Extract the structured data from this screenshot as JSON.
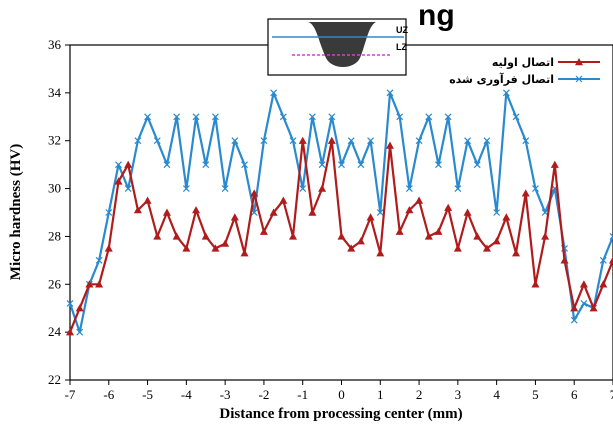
{
  "chart_data": {
    "type": "line",
    "title": "",
    "xlabel": "Distance from processing center (mm)",
    "ylabel": "Micro hardness (HV)",
    "xlim": [
      -7,
      7
    ],
    "ylim": [
      22,
      36
    ],
    "xticks": [
      -7,
      -6,
      -5,
      -4,
      -3,
      -2,
      -1,
      0,
      1,
      2,
      3,
      4,
      5,
      6,
      7
    ],
    "yticks": [
      22,
      24,
      26,
      28,
      30,
      32,
      34,
      36
    ],
    "grid": false,
    "legend_position": "top-right",
    "inset": {
      "labels": [
        "UZ",
        "LZ"
      ]
    },
    "series": [
      {
        "name": "اتصال اولیه",
        "color": "#b01c1c",
        "marker": "triangle",
        "x": [
          -7.0,
          -6.75,
          -6.5,
          -6.25,
          -6.0,
          -5.75,
          -5.5,
          -5.25,
          -5.0,
          -4.75,
          -4.5,
          -4.25,
          -4.0,
          -3.75,
          -3.5,
          -3.25,
          -3.0,
          -2.75,
          -2.5,
          -2.25,
          -2.0,
          -1.75,
          -1.5,
          -1.25,
          -1.0,
          -0.75,
          -0.5,
          -0.25,
          0.0,
          0.25,
          0.5,
          0.75,
          1.0,
          1.25,
          1.5,
          1.75,
          2.0,
          2.25,
          2.5,
          2.75,
          3.0,
          3.25,
          3.5,
          3.75,
          4.0,
          4.25,
          4.5,
          4.75,
          5.0,
          5.25,
          5.5,
          5.75,
          6.0,
          6.25,
          6.5,
          6.75,
          7.0
        ],
        "y": [
          24.0,
          25.0,
          26.0,
          26.0,
          27.5,
          30.3,
          31.0,
          29.1,
          29.5,
          28.0,
          29.0,
          28.0,
          27.5,
          29.1,
          28.0,
          27.5,
          27.7,
          28.8,
          27.3,
          29.8,
          28.2,
          29.0,
          29.5,
          28.0,
          32.0,
          29.0,
          30.0,
          32.0,
          28.0,
          27.5,
          27.8,
          28.8,
          27.3,
          31.8,
          28.2,
          29.1,
          29.5,
          28.0,
          28.2,
          29.2,
          27.5,
          29.0,
          28.0,
          27.5,
          27.8,
          28.8,
          27.3,
          29.8,
          26.0,
          28.0,
          31.0,
          27.0,
          25.0,
          26.0,
          25.0,
          26.0,
          27.0
        ]
      },
      {
        "name": "اتصال فرآوری شده",
        "color": "#2a8ad0",
        "marker": "x",
        "x": [
          -7.0,
          -6.75,
          -6.5,
          -6.25,
          -6.0,
          -5.75,
          -5.5,
          -5.25,
          -5.0,
          -4.75,
          -4.5,
          -4.25,
          -4.0,
          -3.75,
          -3.5,
          -3.25,
          -3.0,
          -2.75,
          -2.5,
          -2.25,
          -2.0,
          -1.75,
          -1.5,
          -1.25,
          -1.0,
          -0.75,
          -0.5,
          -0.25,
          0.0,
          0.25,
          0.5,
          0.75,
          1.0,
          1.25,
          1.5,
          1.75,
          2.0,
          2.25,
          2.5,
          2.75,
          3.0,
          3.25,
          3.5,
          3.75,
          4.0,
          4.25,
          4.5,
          4.75,
          5.0,
          5.25,
          5.5,
          5.75,
          6.0,
          6.25,
          6.5,
          6.75,
          7.0
        ],
        "y": [
          25.2,
          24.0,
          26.0,
          27.0,
          29.0,
          31.0,
          30.0,
          32.0,
          33.0,
          32.0,
          31.0,
          33.0,
          30.0,
          33.0,
          31.0,
          33.0,
          30.0,
          32.0,
          31.0,
          29.0,
          32.0,
          34.0,
          33.0,
          32.0,
          30.0,
          33.0,
          31.0,
          33.0,
          31.0,
          32.0,
          31.0,
          32.0,
          29.0,
          34.0,
          33.0,
          30.0,
          32.0,
          33.0,
          31.0,
          33.0,
          30.0,
          32.0,
          31.0,
          32.0,
          29.0,
          34.0,
          33.0,
          32.0,
          30.0,
          29.0,
          30.0,
          27.5,
          24.5,
          25.2,
          25.0,
          27.0,
          28.0
        ]
      }
    ]
  },
  "header_text": "ng"
}
